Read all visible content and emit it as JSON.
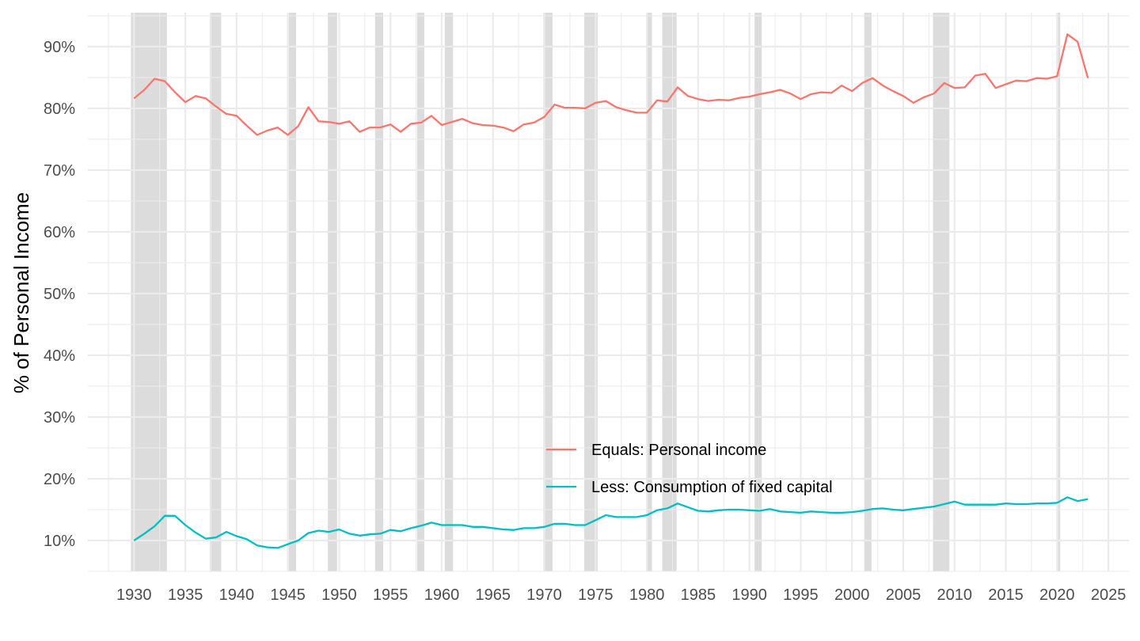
{
  "chart_data": {
    "type": "line",
    "ylabel": "% of Personal Income",
    "xlabel": "",
    "title": "",
    "xlim": [
      1925.5,
      2027
    ],
    "ylim": [
      5,
      95.5
    ],
    "x_ticks": [
      1930,
      1935,
      1940,
      1945,
      1950,
      1955,
      1960,
      1965,
      1970,
      1975,
      1980,
      1985,
      1990,
      1995,
      2000,
      2005,
      2010,
      2015,
      2020,
      2025
    ],
    "x_tick_labels": [
      "1930",
      "1935",
      "1940",
      "1945",
      "1950",
      "1955",
      "1960",
      "1965",
      "1970",
      "1975",
      "1980",
      "1985",
      "1990",
      "1995",
      "2000",
      "2005",
      "2010",
      "2015",
      "2020",
      "2025"
    ],
    "y_ticks": [
      10,
      20,
      30,
      40,
      50,
      60,
      70,
      80,
      90
    ],
    "y_tick_labels": [
      "10%",
      "20%",
      "30%",
      "40%",
      "50%",
      "60%",
      "70%",
      "80%",
      "90%"
    ],
    "grid": true,
    "legend_position": "bottom-center",
    "recessions": [
      [
        1929.7,
        1933.2
      ],
      [
        1937.4,
        1938.5
      ],
      [
        1945.1,
        1945.8
      ],
      [
        1948.9,
        1949.8
      ],
      [
        1953.5,
        1954.3
      ],
      [
        1957.6,
        1958.3
      ],
      [
        1960.3,
        1961.1
      ],
      [
        1969.9,
        1970.8
      ],
      [
        1973.9,
        1975.2
      ],
      [
        1980.0,
        1980.5
      ],
      [
        1981.5,
        1982.9
      ],
      [
        1990.5,
        1991.2
      ],
      [
        2001.2,
        2001.9
      ],
      [
        2007.9,
        2009.5
      ],
      [
        2020.1,
        2020.3
      ]
    ],
    "x": [
      1930,
      1931,
      1932,
      1933,
      1934,
      1935,
      1936,
      1937,
      1938,
      1939,
      1940,
      1941,
      1942,
      1943,
      1944,
      1945,
      1946,
      1947,
      1948,
      1949,
      1950,
      1951,
      1952,
      1953,
      1954,
      1955,
      1956,
      1957,
      1958,
      1959,
      1960,
      1961,
      1962,
      1963,
      1964,
      1965,
      1966,
      1967,
      1968,
      1969,
      1970,
      1971,
      1972,
      1973,
      1974,
      1975,
      1976,
      1977,
      1978,
      1979,
      1980,
      1981,
      1982,
      1983,
      1984,
      1985,
      1986,
      1987,
      1988,
      1989,
      1990,
      1991,
      1992,
      1993,
      1994,
      1995,
      1996,
      1997,
      1998,
      1999,
      2000,
      2001,
      2002,
      2003,
      2004,
      2005,
      2006,
      2007,
      2008,
      2009,
      2010,
      2011,
      2012,
      2013,
      2014,
      2015,
      2016,
      2017,
      2018,
      2019,
      2020,
      2021,
      2022,
      2023
    ],
    "series": [
      {
        "name": "Equals: Personal income",
        "color": "#F8766D",
        "values": [
          81.6,
          83.0,
          84.8,
          84.4,
          82.6,
          81.0,
          82.0,
          81.6,
          80.3,
          79.1,
          78.8,
          77.2,
          75.7,
          76.4,
          76.9,
          75.7,
          77.1,
          80.2,
          77.9,
          77.8,
          77.5,
          77.9,
          76.2,
          76.9,
          76.9,
          77.4,
          76.2,
          77.5,
          77.7,
          78.8,
          77.3,
          77.8,
          78.3,
          77.6,
          77.3,
          77.2,
          76.9,
          76.3,
          77.4,
          77.7,
          78.6,
          80.6,
          80.1,
          80.1,
          80.0,
          80.9,
          81.2,
          80.2,
          79.7,
          79.3,
          79.3,
          81.3,
          81.1,
          83.4,
          82.0,
          81.5,
          81.2,
          81.4,
          81.3,
          81.7,
          81.9,
          82.3,
          82.6,
          83.0,
          82.4,
          81.5,
          82.3,
          82.6,
          82.5,
          83.7,
          82.8,
          84.1,
          84.9,
          83.7,
          82.8,
          82.0,
          80.9,
          81.8,
          82.4,
          84.1,
          83.3,
          83.4,
          85.3,
          85.6,
          83.3,
          83.9,
          84.5,
          84.4,
          84.9,
          84.8,
          85.2,
          92.0,
          90.8,
          84.9
        ]
      },
      {
        "name": "Less: Consumption of fixed capital",
        "color": "#00BFC4",
        "values": [
          10.0,
          11.1,
          12.3,
          14.0,
          14.0,
          12.5,
          11.3,
          10.3,
          10.5,
          11.4,
          10.7,
          10.2,
          9.2,
          8.9,
          8.8,
          9.4,
          10.0,
          11.2,
          11.6,
          11.4,
          11.8,
          11.1,
          10.8,
          11.0,
          11.1,
          11.7,
          11.5,
          12.0,
          12.4,
          12.9,
          12.5,
          12.5,
          12.5,
          12.2,
          12.2,
          12.0,
          11.8,
          11.7,
          12.0,
          12.0,
          12.2,
          12.7,
          12.7,
          12.5,
          12.5,
          13.3,
          14.1,
          13.8,
          13.8,
          13.8,
          14.1,
          14.9,
          15.2,
          16.0,
          15.4,
          14.8,
          14.7,
          14.9,
          15.0,
          15.0,
          14.9,
          14.8,
          15.1,
          14.7,
          14.6,
          14.5,
          14.7,
          14.6,
          14.5,
          14.5,
          14.6,
          14.8,
          15.1,
          15.2,
          15.0,
          14.9,
          15.1,
          15.3,
          15.5,
          15.9,
          16.3,
          15.8,
          15.8,
          15.8,
          15.8,
          16.0,
          15.9,
          15.9,
          16.0,
          16.0,
          16.1,
          17.0,
          16.4,
          16.7
        ]
      }
    ]
  }
}
